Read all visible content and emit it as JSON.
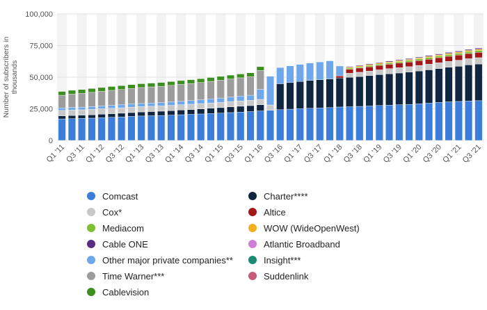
{
  "chart_data": {
    "type": "bar",
    "stacked": true,
    "title": "",
    "xlabel": "",
    "ylabel": "Number of subscribers in thousands",
    "ylim": [
      0,
      100000
    ],
    "yticks": [
      0,
      25000,
      50000,
      75000,
      100000
    ],
    "ytick_labels": [
      "0",
      "25,000",
      "50,000",
      "75,000",
      "100,000"
    ],
    "categories": [
      "Q1 '11",
      "Q2 '11",
      "Q3 '11",
      "Q4 '11",
      "Q1 '12",
      "Q2 '12",
      "Q3 '12",
      "Q4 '12",
      "Q1 '13",
      "Q2 '13",
      "Q3 '13",
      "Q4 '13",
      "Q1 '14",
      "Q2 '14",
      "Q3 '14",
      "Q4 '14",
      "Q1 '15",
      "Q2 '15",
      "Q3 '15",
      "Q4 '15",
      "Q1 '16",
      "Q2 '16",
      "Q3 '16",
      "Q4 '16",
      "Q1 '17",
      "Q2 '17",
      "Q3 '17",
      "Q4 '17",
      "Q1 '18",
      "Q2 '18",
      "Q3 '18",
      "Q4 '18",
      "Q1 '19",
      "Q2 '19",
      "Q3 '19",
      "Q4 '19",
      "Q1 '20",
      "Q2 '20",
      "Q3 '20",
      "Q4 '20",
      "Q1 '21",
      "Q2 '21",
      "Q3 '21"
    ],
    "series": [
      {
        "name": "Comcast",
        "color": "#3b7dd8",
        "values": [
          17000,
          17200,
          17400,
          17600,
          18000,
          18300,
          18600,
          19000,
          19300,
          19500,
          19700,
          20000,
          20300,
          20600,
          20900,
          21300,
          21600,
          22000,
          22400,
          22800,
          23300,
          23800,
          24300,
          24700,
          25100,
          25400,
          25700,
          26000,
          26400,
          26600,
          26900,
          27200,
          27600,
          27900,
          28200,
          28500,
          29000,
          29500,
          30000,
          30500,
          30800,
          31200,
          31400
        ]
      },
      {
        "name": "Charter****",
        "color": "#10253f",
        "values": [
          2400,
          2500,
          2500,
          2600,
          2700,
          2800,
          2900,
          3000,
          3200,
          3300,
          3400,
          3500,
          3700,
          3800,
          4000,
          4100,
          4300,
          4500,
          4600,
          4700,
          4900,
          0,
          20500,
          21000,
          21500,
          22000,
          22300,
          22600,
          23000,
          23300,
          23600,
          24000,
          24400,
          24800,
          25100,
          25500,
          25900,
          26300,
          26800,
          27300,
          27800,
          28500,
          29000
        ]
      },
      {
        "name": "Cox*",
        "color": "#c8c8c8",
        "values": [
          4300,
          4300,
          4300,
          4300,
          4300,
          4300,
          4300,
          4300,
          4200,
          4200,
          4200,
          4200,
          4200,
          4200,
          4200,
          4200,
          4200,
          4200,
          4200,
          4200,
          4200,
          4200,
          0,
          0,
          0,
          0,
          0,
          0,
          0,
          3200,
          3400,
          3600,
          3800,
          4000,
          4200,
          4300,
          4400,
          4500,
          4600,
          4700,
          4800,
          4900,
          5000
        ]
      },
      {
        "name": "Altice",
        "color": "#a31818",
        "values": [
          0,
          0,
          0,
          0,
          0,
          0,
          0,
          0,
          0,
          0,
          0,
          0,
          0,
          0,
          0,
          0,
          0,
          0,
          0,
          0,
          0,
          0,
          0,
          0,
          0,
          0,
          0,
          0,
          1600,
          3200,
          3300,
          3400,
          3500,
          3500,
          3600,
          3700,
          3800,
          3900,
          4000,
          4000,
          4100,
          4100,
          4200
        ]
      },
      {
        "name": "Mediacom",
        "color": "#7cbf2f",
        "values": [
          0,
          0,
          0,
          0,
          0,
          0,
          0,
          0,
          0,
          0,
          0,
          0,
          0,
          0,
          0,
          0,
          0,
          0,
          0,
          0,
          0,
          0,
          0,
          0,
          0,
          0,
          0,
          0,
          0,
          900,
          950,
          1000,
          1050,
          1100,
          1150,
          1200,
          1250,
          1300,
          1350,
          1400,
          1450,
          1500,
          1500
        ]
      },
      {
        "name": "WOW (WideOpenWest)",
        "color": "#f2b01e",
        "values": [
          0,
          0,
          0,
          0,
          0,
          0,
          0,
          0,
          0,
          0,
          0,
          0,
          0,
          0,
          0,
          0,
          0,
          0,
          0,
          0,
          0,
          0,
          0,
          0,
          0,
          0,
          0,
          0,
          0,
          700,
          720,
          740,
          760,
          780,
          800,
          820,
          840,
          860,
          880,
          900,
          920,
          940,
          960
        ]
      },
      {
        "name": "Cable ONE",
        "color": "#5a2d82",
        "values": [
          0,
          0,
          0,
          0,
          0,
          0,
          0,
          0,
          0,
          0,
          0,
          0,
          0,
          0,
          0,
          0,
          0,
          0,
          0,
          0,
          0,
          0,
          0,
          0,
          0,
          0,
          0,
          0,
          0,
          600,
          620,
          640,
          660,
          680,
          700,
          720,
          740,
          760,
          780,
          800,
          820,
          840,
          860
        ]
      },
      {
        "name": "Atlantic Broadband",
        "color": "#d07fd9",
        "values": [
          0,
          0,
          0,
          0,
          0,
          0,
          0,
          0,
          0,
          0,
          0,
          0,
          0,
          0,
          0,
          0,
          0,
          0,
          0,
          0,
          0,
          0,
          0,
          0,
          0,
          0,
          0,
          0,
          0,
          200,
          200,
          200,
          200,
          200,
          200,
          200,
          200,
          200,
          200,
          200,
          200,
          200,
          200
        ]
      },
      {
        "name": "Other major private companies**",
        "color": "#6fa8ea",
        "values": [
          2000,
          2100,
          2100,
          2200,
          2200,
          2300,
          2300,
          2400,
          2500,
          2500,
          2600,
          2700,
          2800,
          2900,
          3000,
          3200,
          3400,
          3600,
          3800,
          4000,
          8000,
          22700,
          12800,
          13200,
          13500,
          13800,
          14000,
          14300,
          7800,
          0,
          0,
          0,
          0,
          0,
          0,
          0,
          0,
          0,
          0,
          0,
          0,
          0,
          0
        ]
      },
      {
        "name": "Insight***",
        "color": "#1b8a73",
        "values": [
          0,
          0,
          0,
          0,
          0,
          0,
          0,
          0,
          0,
          0,
          0,
          0,
          0,
          0,
          0,
          0,
          0,
          0,
          0,
          0,
          0,
          0,
          0,
          0,
          0,
          0,
          0,
          0,
          0,
          0,
          0,
          0,
          0,
          0,
          0,
          0,
          0,
          0,
          0,
          0,
          0,
          0,
          0
        ]
      },
      {
        "name": "Time Warner***",
        "color": "#9c9c9c",
        "values": [
          10000,
          10500,
          10900,
          11300,
          11600,
          11900,
          12200,
          12400,
          12600,
          12800,
          12900,
          13100,
          13300,
          13500,
          13700,
          13900,
          14100,
          14300,
          14500,
          14700,
          14900,
          0,
          0,
          0,
          0,
          0,
          0,
          0,
          0,
          0,
          0,
          0,
          0,
          0,
          0,
          0,
          0,
          0,
          0,
          0,
          0,
          0,
          0
        ]
      },
      {
        "name": "Suddenlink",
        "color": "#c75b7a",
        "values": [
          0,
          0,
          0,
          0,
          0,
          0,
          0,
          0,
          0,
          0,
          0,
          0,
          0,
          0,
          0,
          0,
          0,
          0,
          0,
          0,
          0,
          0,
          0,
          0,
          0,
          0,
          0,
          0,
          0,
          0,
          0,
          0,
          0,
          0,
          0,
          0,
          0,
          0,
          0,
          0,
          0,
          0,
          0
        ]
      },
      {
        "name": "Cablevision",
        "color": "#3b8e1f",
        "values": [
          3000,
          3000,
          3000,
          3000,
          3000,
          3000,
          3000,
          3000,
          3000,
          3000,
          3000,
          3000,
          3000,
          3000,
          3000,
          3000,
          3000,
          3000,
          3000,
          3000,
          3000,
          0,
          0,
          0,
          0,
          0,
          0,
          0,
          0,
          0,
          0,
          0,
          0,
          0,
          0,
          0,
          0,
          0,
          0,
          0,
          0,
          0,
          0
        ]
      }
    ],
    "legend": {
      "position": "bottom",
      "columns": [
        [
          "Comcast",
          "Cox*",
          "Mediacom",
          "Cable ONE",
          "Other major private companies**",
          "Time Warner***",
          "Cablevision"
        ],
        [
          "Charter****",
          "Altice",
          "WOW (WideOpenWest)",
          "Atlantic Broadband",
          "Insight***",
          "Suddenlink"
        ]
      ]
    },
    "grid": true
  }
}
